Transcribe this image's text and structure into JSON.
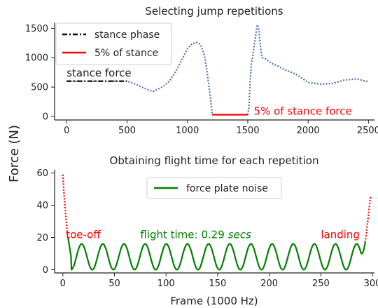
{
  "figure": {
    "ylabel": "Force (N)"
  },
  "chart_data": [
    {
      "type": "line",
      "title": "Selecting jump repetitions",
      "xlabel": "",
      "ylabel": "Force (N)",
      "xlim": [
        -100,
        2550
      ],
      "ylim": [
        -60,
        1600
      ],
      "xticks": [
        0,
        500,
        1000,
        1500,
        2000,
        2500
      ],
      "yticks": [
        0,
        500,
        1000,
        1500
      ],
      "legend": {
        "placement": "top-left",
        "entries": [
          {
            "label": "stance phase",
            "style": "dashdot",
            "color": "#000000"
          },
          {
            "label": "5% of stance",
            "style": "solid",
            "color": "#ff0000"
          }
        ]
      },
      "annotations": [
        {
          "text": "stance force",
          "x": 0,
          "y": 680,
          "color": "#222222"
        },
        {
          "text": "5% of stance force",
          "x": 1550,
          "y": 30,
          "color": "#ff0000"
        }
      ],
      "series": [
        {
          "name": "force",
          "color": "#4c72b0",
          "style": "dotted",
          "x": [
            0,
            500,
            560,
            620,
            680,
            720,
            760,
            800,
            850,
            900,
            950,
            1000,
            1040,
            1080,
            1110,
            1140,
            1160,
            1180,
            1200,
            1205,
            1500,
            1510,
            1520,
            1530,
            1540,
            1550,
            1560,
            1570,
            1580,
            1590,
            1600,
            1610,
            1620,
            1650,
            1700,
            1750,
            1800,
            1900,
            2000,
            2100,
            2200,
            2300,
            2400,
            2500
          ],
          "y": [
            600,
            600,
            560,
            500,
            450,
            430,
            470,
            510,
            600,
            750,
            950,
            1150,
            1240,
            1260,
            1220,
            1050,
            800,
            500,
            150,
            30,
            30,
            150,
            600,
            900,
            1000,
            1150,
            1300,
            1450,
            1560,
            1500,
            1300,
            1100,
            1000,
            980,
            900,
            860,
            800,
            720,
            580,
            550,
            560,
            620,
            640,
            590
          ]
        },
        {
          "name": "stance phase",
          "color": "#000000",
          "style": "dashdot",
          "x": [
            0,
            500
          ],
          "y": [
            600,
            600
          ]
        },
        {
          "name": "5% of stance",
          "color": "#ff0000",
          "style": "solid",
          "x": [
            1205,
            1500
          ],
          "y": [
            30,
            30
          ]
        }
      ]
    },
    {
      "type": "line",
      "title": "Obtaining flight time for each repetition",
      "xlabel": "Frame (1000 Hz)",
      "ylabel": "",
      "xlim": [
        -8,
        302
      ],
      "ylim": [
        -2,
        62
      ],
      "xticks": [
        0,
        50,
        100,
        150,
        200,
        250,
        300
      ],
      "yticks": [
        0,
        20,
        40,
        60
      ],
      "legend": {
        "placement": "top-center",
        "entries": [
          {
            "label": "force plate noise",
            "style": "solid",
            "color": "#008000"
          }
        ]
      },
      "annotations": [
        {
          "text": "toe-off",
          "x": 3,
          "y": 19.5,
          "color": "#ff0000"
        },
        {
          "text": "flight time: 0.29",
          "unit": "secs",
          "x": 75,
          "y": 19.5,
          "color": "#008000"
        },
        {
          "text": "landing",
          "x": 250,
          "y": 19.5,
          "color": "#ff0000"
        }
      ],
      "series": [
        {
          "name": "force plate noise",
          "color": "#008000",
          "style": "solid",
          "x_start": 5,
          "x_end": 293,
          "baseline": 8,
          "amplitude": 8,
          "period": 20.5,
          "start_value": 20,
          "end_value": 17
        },
        {
          "name": "toe-off",
          "color": "#ff0000",
          "style": "dotted",
          "x": [
            0,
            1,
            2,
            3,
            4,
            5
          ],
          "y": [
            59,
            48,
            40,
            32,
            25,
            20
          ]
        },
        {
          "name": "landing",
          "color": "#ff0000",
          "style": "dotted",
          "x": [
            293,
            294,
            295,
            296,
            297,
            298
          ],
          "y": [
            17,
            22,
            28,
            33,
            39,
            45
          ]
        }
      ]
    }
  ]
}
